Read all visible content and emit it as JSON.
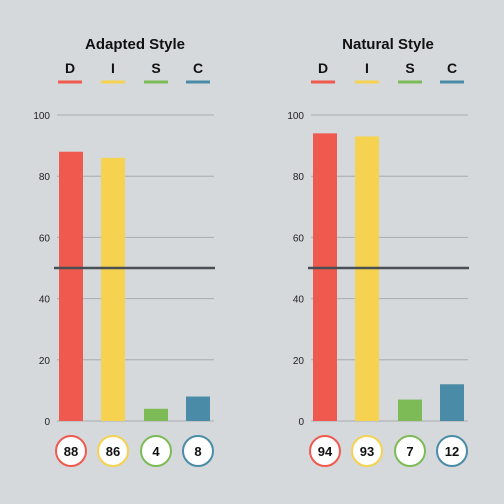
{
  "chart_data": [
    {
      "type": "bar",
      "title": "Adapted Style",
      "categories": [
        "D",
        "I",
        "S",
        "C"
      ],
      "values": [
        88,
        86,
        4,
        8
      ],
      "value_labels": [
        "88",
        "86",
        "4",
        "8"
      ],
      "ylim": [
        0,
        100
      ],
      "yticks": [
        0,
        20,
        40,
        60,
        80,
        100
      ],
      "ytick_labels": [
        "0",
        "20",
        "40",
        "60",
        "80",
        "100"
      ],
      "reference_line": 50,
      "grid": true,
      "colors": [
        "#f05a4e",
        "#f5d24f",
        "#7dbb57",
        "#4a8ca8"
      ]
    },
    {
      "type": "bar",
      "title": "Natural Style",
      "categories": [
        "D",
        "I",
        "S",
        "C"
      ],
      "values": [
        94,
        93,
        7,
        12
      ],
      "value_labels": [
        "94",
        "93",
        "7",
        "12"
      ],
      "ylim": [
        0,
        100
      ],
      "yticks": [
        0,
        20,
        40,
        60,
        80,
        100
      ],
      "ytick_labels": [
        "0",
        "20",
        "40",
        "60",
        "80",
        "100"
      ],
      "reference_line": 50,
      "grid": true,
      "colors": [
        "#f05a4e",
        "#f5d24f",
        "#7dbb57",
        "#4a8ca8"
      ]
    }
  ]
}
